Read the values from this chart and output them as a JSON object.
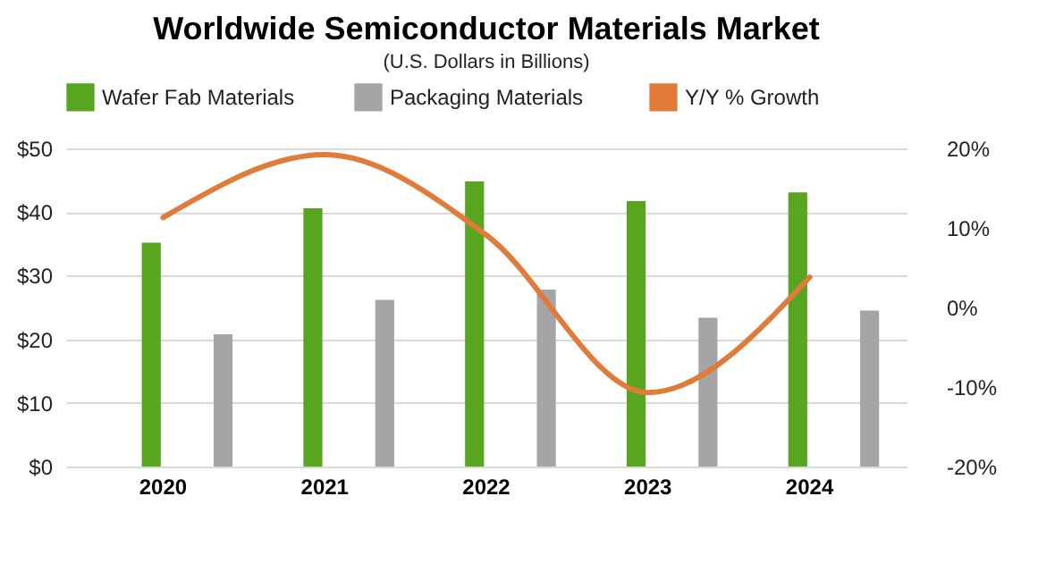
{
  "chart_data": {
    "type": "bar",
    "title": "Worldwide Semiconductor Materials Market",
    "subtitle": "(U.S. Dollars in Billions)",
    "categories": [
      "2020",
      "2021",
      "2022",
      "2023",
      "2024"
    ],
    "series": [
      {
        "name": "Wafer Fab Materials",
        "color": "#58a51f",
        "values": [
          35.2,
          40.6,
          44.8,
          41.7,
          43.1
        ]
      },
      {
        "name": "Packaging  Materials",
        "color": "#a5a5a5",
        "values": [
          20.8,
          26.2,
          27.8,
          23.4,
          24.5
        ]
      },
      {
        "name": "Y/Y % Growth",
        "type": "line",
        "axis": "y2",
        "color": "#e07b39",
        "values": [
          11.3,
          19.2,
          9.1,
          -10.7,
          3.8
        ]
      }
    ],
    "ylim": [
      0,
      50
    ],
    "yticks": [
      {
        "value": 0,
        "label": "$0"
      },
      {
        "value": 10,
        "label": "$10"
      },
      {
        "value": 20,
        "label": "$20"
      },
      {
        "value": 30,
        "label": "$30"
      },
      {
        "value": 40,
        "label": "$40"
      },
      {
        "value": 50,
        "label": "$50"
      }
    ],
    "y2lim": [
      -20,
      20
    ],
    "y2ticks": [
      {
        "value": -20,
        "label": "-20%"
      },
      {
        "value": -10,
        "label": "-10%"
      },
      {
        "value": 0,
        "label": "0%"
      },
      {
        "value": 10,
        "label": "10%"
      },
      {
        "value": 20,
        "label": "20%"
      }
    ],
    "grid": "y",
    "legend": "top",
    "marker": "none",
    "line_style": "solid"
  }
}
